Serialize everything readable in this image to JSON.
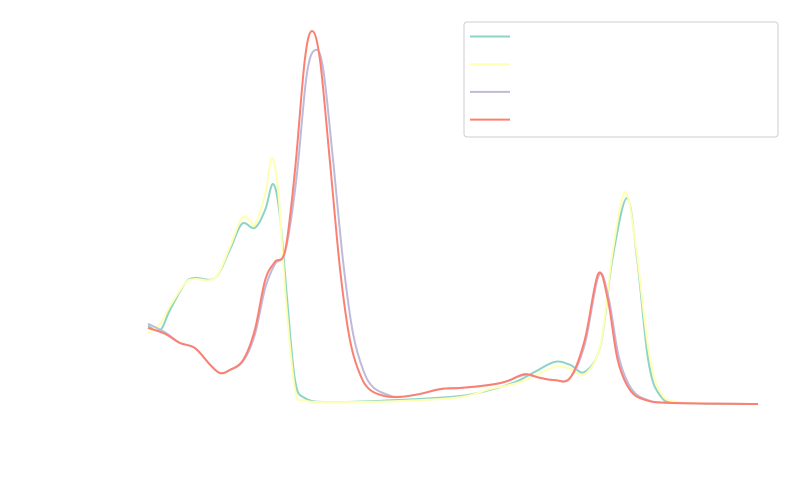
{
  "chart_data": {
    "type": "line",
    "title": "",
    "xlabel": "",
    "ylabel": "",
    "xlim": [
      0,
      100
    ],
    "ylim": [
      0,
      1
    ],
    "grid": false,
    "axes_visible": false,
    "legend": {
      "placement": "top-right",
      "labels_visible": false
    },
    "series": [
      {
        "color": "#8dd3c7",
        "x": [
          0,
          2,
          3.6,
          6.1,
          7.7,
          11.0,
          13.4,
          15.4,
          17.5,
          19.2,
          20.5,
          21.6,
          22.8,
          24.1,
          25.7,
          29.8,
          41.3,
          51.1,
          56.1,
          60.2,
          63.4,
          66.7,
          69.2,
          71.6,
          74.2,
          76.1,
          78.5,
          80.2,
          82.0,
          83.9,
          87.2,
          100
        ],
        "y": [
          0.209,
          0.198,
          0.252,
          0.324,
          0.338,
          0.338,
          0.413,
          0.483,
          0.472,
          0.52,
          0.59,
          0.507,
          0.282,
          0.064,
          0.016,
          0.005,
          0.011,
          0.021,
          0.038,
          0.059,
          0.086,
          0.113,
          0.105,
          0.086,
          0.158,
          0.386,
          0.552,
          0.386,
          0.118,
          0.024,
          0.003,
          0
        ]
      },
      {
        "color": "#ffffb3",
        "x": [
          0,
          2,
          3.6,
          6.1,
          7.7,
          11.0,
          13.4,
          15.4,
          16.8,
          17.5,
          19.2,
          20.3,
          21.4,
          22.6,
          24.1,
          25.7,
          29.8,
          41.3,
          51.1,
          56.1,
          60.2,
          63.4,
          66.7,
          69.2,
          71.6,
          74.2,
          76.1,
          78.2,
          80.0,
          82.0,
          83.9,
          87.2,
          100
        ],
        "y": [
          0.19,
          0.215,
          0.262,
          0.324,
          0.335,
          0.338,
          0.42,
          0.499,
          0.49,
          0.48,
          0.56,
          0.66,
          0.56,
          0.28,
          0.04,
          0.01,
          0.005,
          0.008,
          0.018,
          0.04,
          0.055,
          0.075,
          0.1,
          0.095,
          0.08,
          0.16,
          0.4,
          0.568,
          0.42,
          0.15,
          0.035,
          0.005,
          0
        ]
      },
      {
        "color": "#bebada",
        "x": [
          0,
          2.8,
          5.2,
          7.7,
          10.2,
          11.8,
          13.4,
          15.6,
          17.5,
          19.2,
          20.8,
          22.5,
          24.3,
          26.0,
          27.4,
          28.7,
          30.3,
          32.0,
          33.6,
          35.3,
          36.9,
          39.4,
          41.3,
          44.6,
          47.9,
          51.1,
          54.4,
          57.7,
          59.3,
          61.8,
          64.3,
          66.7,
          69.2,
          71.6,
          73.9,
          75.5,
          77.2,
          79.2,
          81.7,
          85.6,
          100
        ],
        "y": [
          0.215,
          0.192,
          0.164,
          0.15,
          0.105,
          0.083,
          0.091,
          0.115,
          0.185,
          0.31,
          0.375,
          0.41,
          0.6,
          0.88,
          0.949,
          0.9,
          0.66,
          0.38,
          0.19,
          0.09,
          0.045,
          0.024,
          0.019,
          0.027,
          0.04,
          0.043,
          0.048,
          0.056,
          0.064,
          0.078,
          0.07,
          0.064,
          0.07,
          0.16,
          0.345,
          0.285,
          0.125,
          0.042,
          0.012,
          0.003,
          0
        ]
      },
      {
        "color": "#fb8072",
        "x": [
          0,
          2.8,
          5.2,
          7.7,
          10.2,
          11.8,
          13.4,
          15.6,
          17.5,
          19.2,
          20.8,
          22.5,
          24.1,
          25.7,
          26.9,
          28.2,
          29.8,
          31.5,
          33.1,
          34.8,
          36.4,
          38.9,
          41.3,
          44.6,
          47.9,
          51.1,
          54.4,
          57.7,
          59.3,
          61.8,
          64.3,
          66.7,
          69.2,
          71.6,
          73.8,
          75.4,
          77.0,
          79.0,
          81.5,
          85.6,
          100
        ],
        "y": [
          0.204,
          0.188,
          0.164,
          0.15,
          0.105,
          0.083,
          0.091,
          0.118,
          0.198,
          0.332,
          0.381,
          0.413,
          0.627,
          0.922,
          1.0,
          0.922,
          0.654,
          0.359,
          0.172,
          0.078,
          0.038,
          0.021,
          0.019,
          0.027,
          0.04,
          0.043,
          0.048,
          0.056,
          0.064,
          0.08,
          0.07,
          0.064,
          0.07,
          0.172,
          0.349,
          0.279,
          0.118,
          0.038,
          0.011,
          0.003,
          0
        ]
      }
    ]
  }
}
